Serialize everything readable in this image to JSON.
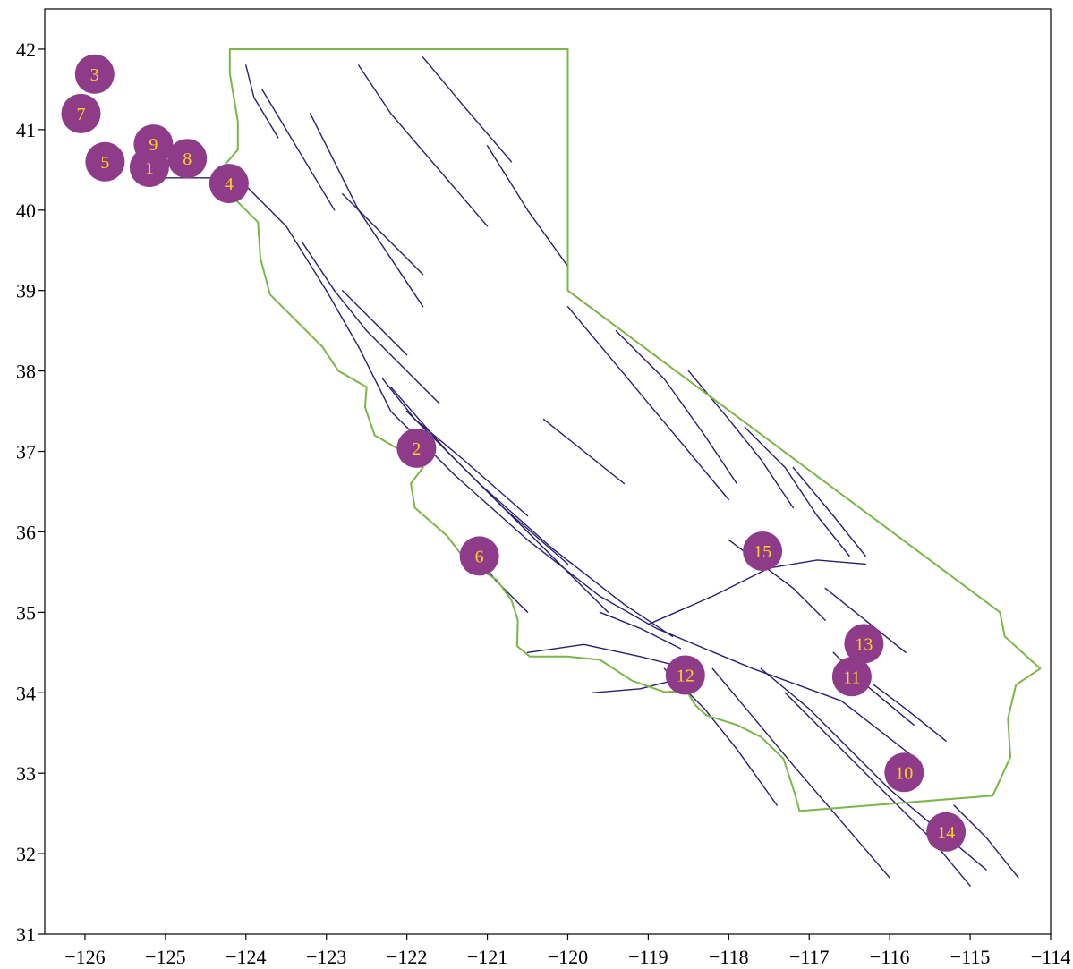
{
  "colors": {
    "border": "#7ab648",
    "faults": "#2b1e6e",
    "marker": "#8e3b8a",
    "marker_text": "#ffd21f",
    "frame": "#000000"
  },
  "chart_data": {
    "type": "scatter",
    "xlim": [
      -126.5,
      -114
    ],
    "ylim": [
      31,
      42.5
    ],
    "grid": false,
    "x_ticks": [
      "−126",
      "−125",
      "−124",
      "−123",
      "−122",
      "−121",
      "−120",
      "−119",
      "−118",
      "−117",
      "−116",
      "−115",
      "−114"
    ],
    "x_tick_values": [
      -126,
      -125,
      -124,
      -123,
      -122,
      -121,
      -120,
      -119,
      -118,
      -117,
      -116,
      -115,
      -114
    ],
    "y_ticks": [
      "31",
      "32",
      "33",
      "34",
      "35",
      "36",
      "37",
      "38",
      "39",
      "40",
      "41",
      "42"
    ],
    "y_tick_values": [
      31,
      32,
      33,
      34,
      35,
      36,
      37,
      38,
      39,
      40,
      41,
      42
    ],
    "points": [
      {
        "label": "1",
        "lon": -125.2,
        "lat": 40.53
      },
      {
        "label": "2",
        "lon": -121.88,
        "lat": 37.04
      },
      {
        "label": "3",
        "lon": -125.88,
        "lat": 41.69
      },
      {
        "label": "4",
        "lon": -124.21,
        "lat": 40.33
      },
      {
        "label": "5",
        "lon": -125.75,
        "lat": 40.6
      },
      {
        "label": "6",
        "lon": -121.1,
        "lat": 35.7
      },
      {
        "label": "7",
        "lon": -126.05,
        "lat": 41.2
      },
      {
        "label": "8",
        "lon": -124.73,
        "lat": 40.64
      },
      {
        "label": "9",
        "lon": -125.15,
        "lat": 40.82
      },
      {
        "label": "10",
        "lon": -115.82,
        "lat": 33.01
      },
      {
        "label": "11",
        "lon": -116.47,
        "lat": 34.2
      },
      {
        "label": "12",
        "lon": -118.54,
        "lat": 34.22
      },
      {
        "label": "13",
        "lon": -116.32,
        "lat": 34.61
      },
      {
        "label": "14",
        "lon": -115.3,
        "lat": 32.27
      },
      {
        "label": "15",
        "lon": -117.58,
        "lat": 35.76
      }
    ]
  }
}
